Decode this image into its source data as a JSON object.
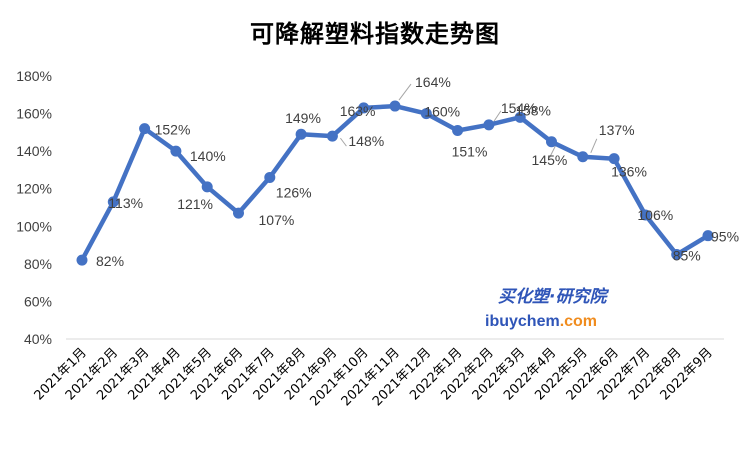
{
  "chart_data": {
    "type": "line",
    "title": "可降解塑料指数走势图",
    "categories": [
      "2021年1月",
      "2021年2月",
      "2021年3月",
      "2021年4月",
      "2021年5月",
      "2021年6月",
      "2021年7月",
      "2021年8月",
      "2021年9月",
      "2021年10月",
      "2021年11月",
      "2021年12月",
      "2022年1月",
      "2022年2月",
      "2022年3月",
      "2022年4月",
      "2022年5月",
      "2022年6月",
      "2022年7月",
      "2022年8月",
      "2022年9月"
    ],
    "values": [
      82,
      113,
      152,
      140,
      121,
      107,
      126,
      149,
      148,
      163,
      164,
      160,
      151,
      154,
      158,
      145,
      137,
      136,
      106,
      85,
      95
    ],
    "value_labels": [
      "82%",
      "113%",
      "152%",
      "140%",
      "121%",
      "107%",
      "126%",
      "149%",
      "148%",
      "163%",
      "164%",
      "160%",
      "151%",
      "154%",
      "158%",
      "145%",
      "137%",
      "136%",
      "106%",
      "85%",
      "95%"
    ],
    "y_ticks": [
      40,
      60,
      80,
      100,
      120,
      140,
      160,
      180
    ],
    "y_tick_labels": [
      "40%",
      "60%",
      "80%",
      "100%",
      "120%",
      "140%",
      "160%",
      "180%"
    ],
    "ylim": [
      40,
      180
    ],
    "grid": false,
    "line_color": "#4472c4",
    "xlabel": "",
    "ylabel": ""
  },
  "watermark": {
    "name_cn": "买化塑·研究院",
    "site_main": "ibuychem",
    "site_tld": ".com",
    "color_blue": "#2f55b8",
    "color_orange": "#f08c1e"
  }
}
